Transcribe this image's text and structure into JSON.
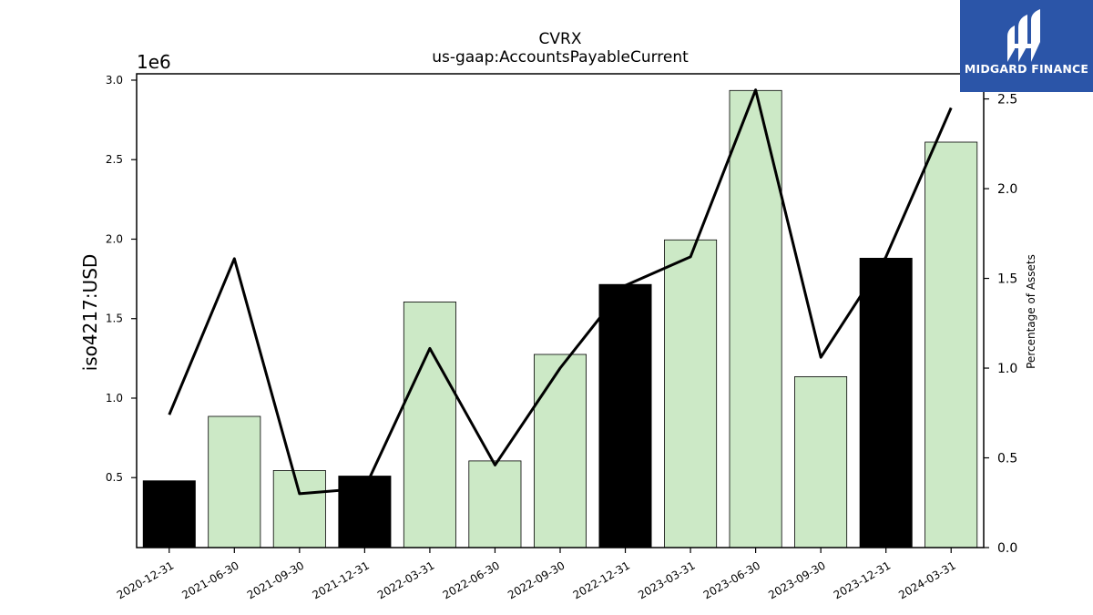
{
  "chart_data": {
    "type": "bar",
    "title": "CVRX",
    "subtitle": "us-gaap:AccountsPayableCurrent",
    "ylabel": "iso4217:USD",
    "y_offset_label": "1e6",
    "ylabel_right": "Percentage of Assets",
    "categories": [
      "2020-12-31",
      "2021-06-30",
      "2021-09-30",
      "2021-12-31",
      "2022-03-31",
      "2022-06-30",
      "2022-09-30",
      "2022-12-31",
      "2023-03-31",
      "2023-06-30",
      "2023-09-30",
      "2023-12-31",
      "2024-03-31"
    ],
    "series": [
      {
        "type": "bar",
        "axis": "left",
        "values": [
          480000,
          885000,
          545000,
          510000,
          1605000,
          605000,
          1275000,
          1715000,
          1995000,
          2935000,
          1135000,
          1880000,
          2610000
        ],
        "highlight": [
          true,
          false,
          false,
          true,
          false,
          false,
          false,
          true,
          false,
          false,
          false,
          true,
          false
        ]
      },
      {
        "type": "line",
        "axis": "right",
        "values": [
          0.74,
          1.61,
          0.3,
          0.33,
          1.11,
          0.46,
          1.0,
          1.46,
          1.62,
          2.55,
          1.06,
          1.62,
          2.45
        ]
      }
    ],
    "ylim": [
      60000,
      3040000
    ],
    "yticks": [
      0.5,
      1.0,
      1.5,
      2.0,
      2.5,
      3.0
    ],
    "ylim_right": [
      0.0,
      2.64
    ],
    "yticks_right": [
      "0.0",
      "0.5",
      "1.0",
      "1.5",
      "2.0",
      "2.5"
    ],
    "grid": false,
    "colors": {
      "bar_highlight": "#000000",
      "bar_normal": "#cce9c6",
      "bar_edge": "#000000",
      "line": "#000000"
    }
  },
  "logo": {
    "text": "MIDGARD FINANCE",
    "background": "#2b55a8"
  }
}
